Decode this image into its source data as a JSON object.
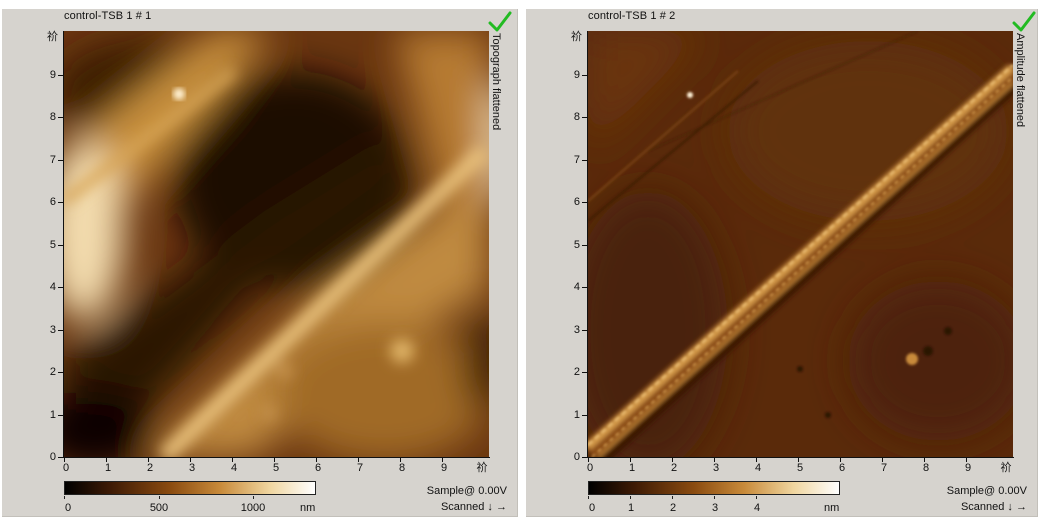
{
  "panels": [
    {
      "title": "control-TSB 1 # 1",
      "side_label": "Topograph flattened",
      "y_ticks": [
        "0",
        "1",
        "2",
        "3",
        "4",
        "5",
        "6",
        "7",
        "8",
        "9"
      ],
      "y_top_glyph": "祄",
      "x_ticks": [
        "0",
        "1",
        "2",
        "3",
        "4",
        "5",
        "6",
        "7",
        "8",
        "9"
      ],
      "x_end_glyph": "祄",
      "colorbar": {
        "ticks": [
          "0",
          "500",
          "1000"
        ],
        "unit": "nm",
        "colors": [
          "#000000",
          "#3d1a05",
          "#8a4b10",
          "#c88a3a",
          "#f0d6a0",
          "#ffffff"
        ]
      },
      "info_line1": "Sample@ 0.00V",
      "info_line2": "Scanned ↓ →",
      "check_color": "#22bb22"
    },
    {
      "title": "control-TSB 1 # 2",
      "side_label": "Amplitude flattened",
      "y_ticks": [
        "0",
        "1",
        "2",
        "3",
        "4",
        "5",
        "6",
        "7",
        "8",
        "9"
      ],
      "y_top_glyph": "祄",
      "x_ticks": [
        "0",
        "1",
        "2",
        "3",
        "4",
        "5",
        "6",
        "7",
        "8",
        "9"
      ],
      "x_end_glyph": "祄",
      "colorbar": {
        "ticks": [
          "0",
          "1",
          "2",
          "3",
          "4"
        ],
        "unit": "nm",
        "colors": [
          "#000000",
          "#3d1a05",
          "#8a4b10",
          "#c88a3a",
          "#f0d6a0",
          "#ffffff"
        ]
      },
      "info_line1": "Sample@ 0.00V",
      "info_line2": "Scanned ↓ →",
      "check_color": "#22bb22"
    }
  ]
}
